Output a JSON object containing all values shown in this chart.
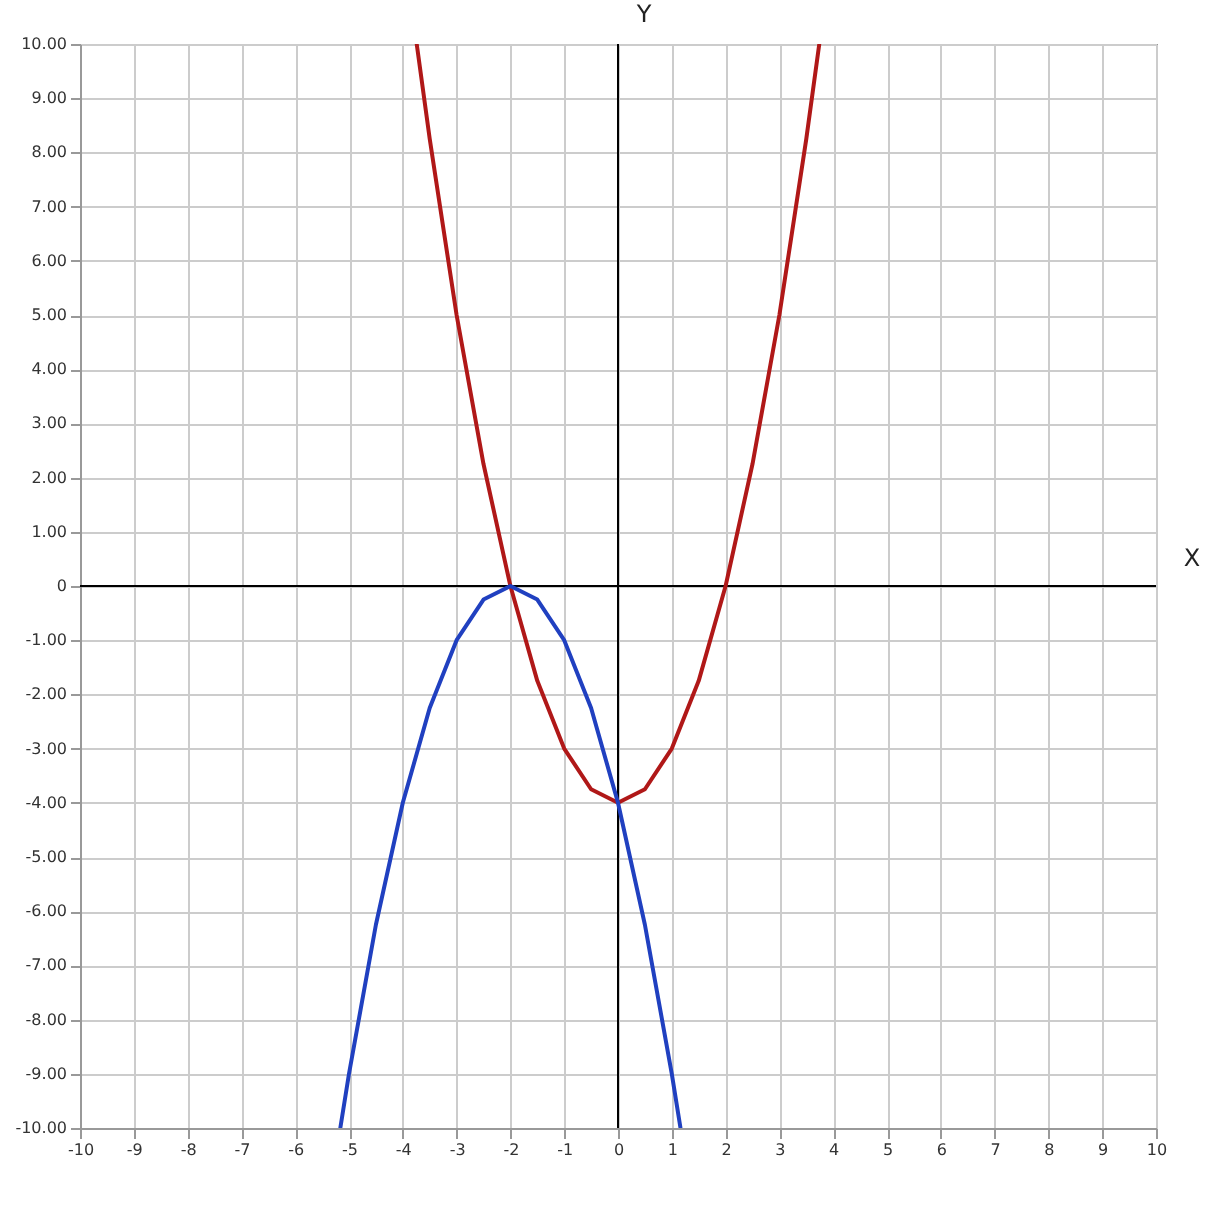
{
  "chart_data": {
    "type": "line",
    "xlabel": "X",
    "ylabel": "Y",
    "series": [
      {
        "color": "#b01818",
        "x": [
          -3.74,
          -3.5,
          -3,
          -2.5,
          -2,
          -1.5,
          -1,
          -0.5,
          0,
          0.5,
          1,
          1.5,
          2,
          2.5,
          3,
          3.5,
          3.74
        ],
        "values": [
          9.99,
          8.25,
          5,
          2.25,
          0,
          -1.75,
          -3,
          -3.75,
          -4,
          -3.75,
          -3,
          -1.75,
          0,
          2.25,
          5,
          8.25,
          9.99
        ]
      },
      {
        "color": "#2040c0",
        "x": [
          -5.16,
          -5,
          -4.5,
          -4,
          -3.5,
          -3,
          -2.5,
          -2,
          -1.5,
          -1,
          -0.5,
          0,
          0.5,
          1,
          1.16
        ],
        "values": [
          -9.99,
          -9,
          -6.25,
          -4,
          -2.25,
          -1,
          -0.25,
          0,
          -0.25,
          -1,
          -2.25,
          -4,
          -6.25,
          -9,
          -9.99
        ]
      }
    ],
    "xlim": [
      -10,
      10
    ],
    "ylim": [
      -10,
      10
    ],
    "xticks": [
      -10,
      -9,
      -8,
      -7,
      -6,
      -5,
      -4,
      -3,
      -2,
      -1,
      0,
      1,
      2,
      3,
      4,
      5,
      6,
      7,
      8,
      9,
      10
    ],
    "yticks": [
      {
        "value": -10,
        "label": "-10.00"
      },
      {
        "value": -9,
        "label": "-9.00"
      },
      {
        "value": -8,
        "label": "-8.00"
      },
      {
        "value": -7,
        "label": "-7.00"
      },
      {
        "value": -6,
        "label": "-6.00"
      },
      {
        "value": -5,
        "label": "-5.00"
      },
      {
        "value": -4,
        "label": "-4.00"
      },
      {
        "value": -3,
        "label": "-3.00"
      },
      {
        "value": -2,
        "label": "-2.00"
      },
      {
        "value": -1,
        "label": "-1.00"
      },
      0,
      {
        "value": 1,
        "label": "1.00"
      },
      {
        "value": 2,
        "label": "2.00"
      },
      {
        "value": 3,
        "label": "3.00"
      },
      {
        "value": 4,
        "label": "4.00"
      },
      {
        "value": 5,
        "label": "5.00"
      },
      {
        "value": 6,
        "label": "6.00"
      },
      {
        "value": 7,
        "label": "7.00"
      },
      {
        "value": 8,
        "label": "8.00"
      },
      {
        "value": 9,
        "label": "9.00"
      },
      {
        "value": 10,
        "label": "10.00"
      }
    ],
    "grid": true,
    "marker": "none",
    "line_style": "solid"
  }
}
